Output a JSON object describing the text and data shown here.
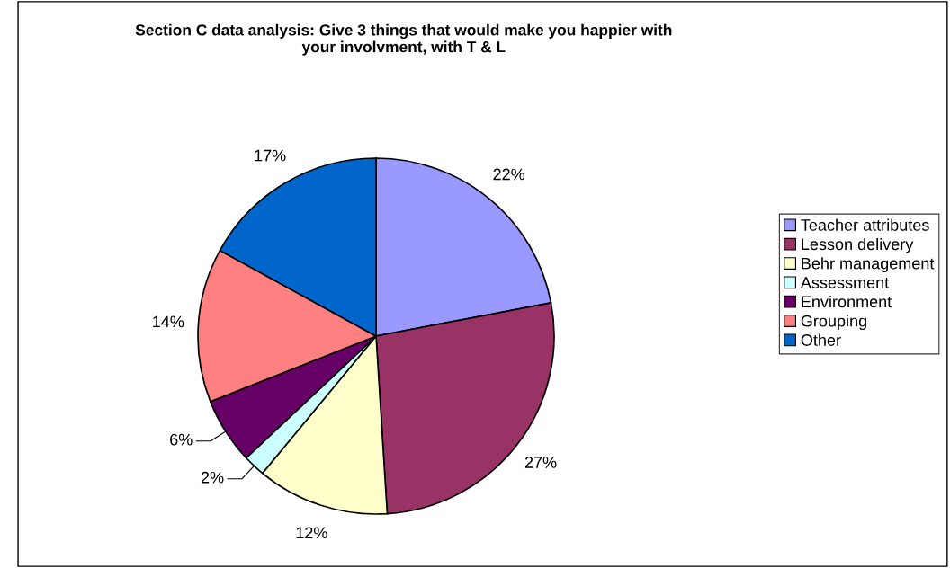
{
  "chart_data": {
    "type": "pie",
    "title": "Section C data analysis: Give 3 things that would make you happier with\nyour involvment, with T & L",
    "categories": [
      "Teacher attributes",
      "Lesson delivery",
      "Behr management",
      "Assessment",
      "Environment",
      "Grouping",
      "Other"
    ],
    "values": [
      22,
      27,
      12,
      2,
      6,
      14,
      17
    ],
    "value_labels": [
      "22%",
      "27%",
      "12%",
      "2%",
      "6%",
      "14%",
      "17%"
    ],
    "colors": [
      "#9999ff",
      "#993366",
      "#ffffcc",
      "#ccffff",
      "#660066",
      "#ff8080",
      "#0066cc"
    ],
    "legend": "right"
  }
}
